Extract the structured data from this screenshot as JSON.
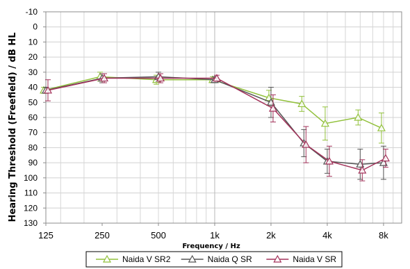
{
  "chart_data": {
    "type": "line",
    "title": "",
    "xlabel": "Frequency / Hz",
    "ylabel": "Hearing Threshold (Freefield) / dB HL",
    "x_scale": "log",
    "x_ticks": [
      {
        "value": 125,
        "label": "125"
      },
      {
        "value": 250,
        "label": "250"
      },
      {
        "value": 500,
        "label": "500"
      },
      {
        "value": 1000,
        "label": "1k"
      },
      {
        "value": 2000,
        "label": "2k"
      },
      {
        "value": 4000,
        "label": "4k"
      },
      {
        "value": 8000,
        "label": "8k"
      }
    ],
    "xlim": [
      125,
      10000
    ],
    "ylim": [
      -10,
      130
    ],
    "y_inverted": true,
    "y_ticks": [
      -10,
      0,
      10,
      20,
      30,
      40,
      50,
      60,
      70,
      80,
      90,
      100,
      110,
      120,
      130
    ],
    "grid": true,
    "legend_position": "bottom",
    "series": [
      {
        "name": "Naida V SR2",
        "color": "#92c13c",
        "marker": "triangle",
        "points": [
          {
            "x": 125,
            "y": 42,
            "err": 2
          },
          {
            "x": 250,
            "y": 33,
            "err": 3
          },
          {
            "x": 500,
            "y": 35,
            "err": 3
          },
          {
            "x": 1000,
            "y": 35,
            "err": 2
          },
          {
            "x": 2000,
            "y": 47,
            "err": 5
          },
          {
            "x": 3000,
            "y": 51,
            "err": 5
          },
          {
            "x": 4000,
            "y": 64,
            "err": 11
          },
          {
            "x": 6000,
            "y": 60,
            "err": 5
          },
          {
            "x": 8000,
            "y": 67,
            "err": 10
          }
        ]
      },
      {
        "name": "Naida Q SR",
        "color": "#555555",
        "marker": "triangle",
        "points": [
          {
            "x": 125,
            "y": 42,
            "err": 2
          },
          {
            "x": 250,
            "y": 34,
            "err": 3
          },
          {
            "x": 500,
            "y": 33,
            "err": 3
          },
          {
            "x": 1000,
            "y": 35,
            "err": 2
          },
          {
            "x": 2000,
            "y": 50,
            "err": 10
          },
          {
            "x": 3000,
            "y": 77,
            "err": 9
          },
          {
            "x": 4000,
            "y": 89,
            "err": 8
          },
          {
            "x": 6000,
            "y": 91,
            "err": 10
          },
          {
            "x": 8000,
            "y": 90,
            "err": 11
          }
        ]
      },
      {
        "name": "Naida V SR",
        "color": "#a3325a",
        "marker": "triangle",
        "points": [
          {
            "x": 125,
            "y": 42,
            "err": 7
          },
          {
            "x": 250,
            "y": 34,
            "err": 3
          },
          {
            "x": 500,
            "y": 34,
            "err": 3
          },
          {
            "x": 1000,
            "y": 34,
            "err": 2
          },
          {
            "x": 2000,
            "y": 54,
            "err": 9
          },
          {
            "x": 3000,
            "y": 78,
            "err": 12
          },
          {
            "x": 4000,
            "y": 89,
            "err": 10
          },
          {
            "x": 6000,
            "y": 95,
            "err": 7
          },
          {
            "x": 8000,
            "y": 87,
            "err": 6
          }
        ]
      }
    ]
  }
}
